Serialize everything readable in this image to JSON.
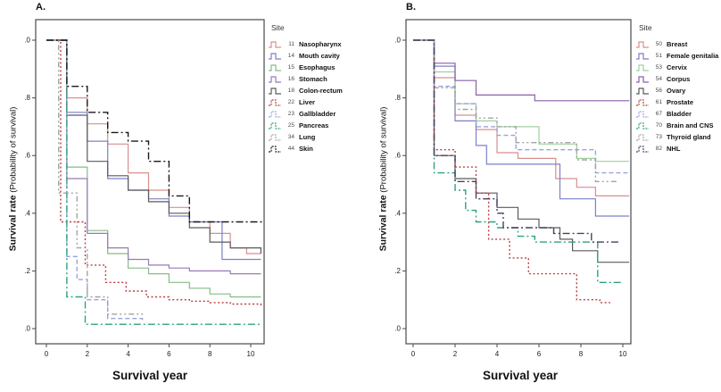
{
  "chart_data": [
    {
      "id": "A",
      "type": "line",
      "subtype": "kaplan-meier-step",
      "panel_label": "A.",
      "legend_title": "Site",
      "x_axis": {
        "title": "Survival year",
        "ticks": [
          0,
          2,
          4,
          6,
          8,
          10
        ],
        "range": [
          0,
          10.8
        ]
      },
      "y_axis": {
        "title_bold": "Survival rate",
        "title_rest": " (Probability of survival)",
        "ticks": [
          0.0,
          0.2,
          0.4,
          0.6,
          0.8,
          1.0
        ],
        "range": [
          0,
          1
        ]
      },
      "series": [
        {
          "code": "11",
          "label": "Nasopharynx",
          "color": "#d88f8f",
          "dash": "solid",
          "points": [
            [
              1,
              0.8
            ],
            [
              2,
              0.71
            ],
            [
              3,
              0.64
            ],
            [
              4,
              0.54
            ],
            [
              5,
              0.48
            ],
            [
              6,
              0.42
            ],
            [
              7,
              0.37
            ],
            [
              8,
              0.33
            ],
            [
              9,
              0.28
            ],
            [
              9.8,
              0.26
            ],
            [
              10.5,
              0.26
            ]
          ]
        },
        {
          "code": "14",
          "label": "Mouth cavity",
          "color": "#7b80c8",
          "dash": "solid",
          "points": [
            [
              1,
              0.75
            ],
            [
              2,
              0.65
            ],
            [
              3,
              0.52
            ],
            [
              4,
              0.48
            ],
            [
              5,
              0.45
            ],
            [
              6,
              0.39
            ],
            [
              7,
              0.37
            ],
            [
              8.6,
              0.24
            ],
            [
              10.5,
              0.24
            ]
          ]
        },
        {
          "code": "15",
          "label": "Esophagus",
          "color": "#86bb86",
          "dash": "solid",
          "points": [
            [
              1,
              0.56
            ],
            [
              2,
              0.34
            ],
            [
              3,
              0.26
            ],
            [
              4,
              0.21
            ],
            [
              5,
              0.19
            ],
            [
              6,
              0.16
            ],
            [
              7,
              0.14
            ],
            [
              8,
              0.12
            ],
            [
              9,
              0.11
            ],
            [
              10.5,
              0.11
            ]
          ]
        },
        {
          "code": "16",
          "label": "Stomach",
          "color": "#9a79b8",
          "dash": "solid",
          "points": [
            [
              1,
              0.52
            ],
            [
              2,
              0.33
            ],
            [
              3,
              0.28
            ],
            [
              4,
              0.24
            ],
            [
              5,
              0.22
            ],
            [
              6,
              0.21
            ],
            [
              7,
              0.2
            ],
            [
              9,
              0.19
            ],
            [
              10.5,
              0.19
            ]
          ]
        },
        {
          "code": "18",
          "label": "Colon-rectum",
          "color": "#5a5a5a",
          "dash": "solid",
          "points": [
            [
              1,
              0.74
            ],
            [
              2,
              0.58
            ],
            [
              3,
              0.53
            ],
            [
              4,
              0.48
            ],
            [
              5,
              0.44
            ],
            [
              6,
              0.4
            ],
            [
              7,
              0.35
            ],
            [
              8,
              0.3
            ],
            [
              9,
              0.28
            ],
            [
              10.5,
              0.26
            ]
          ]
        },
        {
          "code": "22",
          "label": "Liver",
          "color": "#b84040",
          "dash": "dot",
          "points": [
            [
              0.7,
              0.37
            ],
            [
              1.9,
              0.22
            ],
            [
              2.9,
              0.16
            ],
            [
              3.9,
              0.13
            ],
            [
              4.9,
              0.11
            ],
            [
              6,
              0.1
            ],
            [
              7,
              0.095
            ],
            [
              8,
              0.09
            ],
            [
              9,
              0.085
            ],
            [
              10.5,
              0.08
            ]
          ]
        },
        {
          "code": "23",
          "label": "Gallbladder",
          "color": "#9aa2dc",
          "dash": "dash",
          "points": [
            [
              1,
              0.25
            ],
            [
              1.5,
              0.17
            ],
            [
              2,
              0.1
            ],
            [
              3,
              0.035
            ],
            [
              4.7,
              0.03
            ]
          ]
        },
        {
          "code": "25",
          "label": "Pancreas",
          "color": "#2ea183",
          "dash": "dashdot",
          "points": [
            [
              1,
              0.11
            ],
            [
              1.9,
              0.015
            ],
            [
              10.5,
              0.015
            ]
          ]
        },
        {
          "code": "34",
          "label": "Lung",
          "color": "#a3a3a3",
          "dash": "dashdotdot",
          "points": [
            [
              0.6,
              0.47
            ],
            [
              1.5,
              0.28
            ],
            [
              2,
              0.11
            ],
            [
              3,
              0.05
            ],
            [
              4.7,
              0.04
            ]
          ]
        },
        {
          "code": "44",
          "label": "Skin",
          "color": "#1a1a1a",
          "dash": "dashdot",
          "points": [
            [
              1,
              0.84
            ],
            [
              2,
              0.75
            ],
            [
              3,
              0.68
            ],
            [
              4,
              0.65
            ],
            [
              5,
              0.58
            ],
            [
              6,
              0.46
            ],
            [
              7,
              0.37
            ],
            [
              10.6,
              0.37
            ]
          ]
        }
      ]
    },
    {
      "id": "B",
      "type": "line",
      "subtype": "kaplan-meier-step",
      "panel_label": "B.",
      "legend_title": "Site",
      "x_axis": {
        "title": "Survival year",
        "ticks": [
          0,
          2,
          4,
          6,
          8,
          10
        ],
        "range": [
          0,
          10.5
        ]
      },
      "y_axis": {
        "title_bold": "Survival rate",
        "title_rest": " (Probability of survival)",
        "ticks": [
          0.0,
          0.2,
          0.4,
          0.6,
          0.8,
          1.0
        ],
        "range": [
          0,
          1
        ]
      },
      "series": [
        {
          "code": "50",
          "label": "Breast",
          "color": "#d88f8f",
          "dash": "solid",
          "points": [
            [
              1,
              0.87
            ],
            [
              2,
              0.74
            ],
            [
              3,
              0.69
            ],
            [
              4,
              0.61
            ],
            [
              5,
              0.59
            ],
            [
              6.8,
              0.52
            ],
            [
              7.8,
              0.49
            ],
            [
              8.7,
              0.46
            ],
            [
              10.3,
              0.46
            ]
          ]
        },
        {
          "code": "51",
          "label": "Female genitalia",
          "color": "#7b80c8",
          "dash": "solid",
          "points": [
            [
              1,
              0.91
            ],
            [
              2,
              0.72
            ],
            [
              3,
              0.635
            ],
            [
              3.5,
              0.57
            ],
            [
              7,
              0.45
            ],
            [
              8.7,
              0.39
            ],
            [
              10.3,
              0.39
            ]
          ]
        },
        {
          "code": "53",
          "label": "Cervix",
          "color": "#9fd09f",
          "dash": "solid",
          "points": [
            [
              1,
              0.89
            ],
            [
              2,
              0.78
            ],
            [
              3,
              0.72
            ],
            [
              4,
              0.7
            ],
            [
              6,
              0.64
            ],
            [
              7.8,
              0.59
            ],
            [
              8.7,
              0.58
            ],
            [
              10.3,
              0.58
            ]
          ]
        },
        {
          "code": "54",
          "label": "Corpus",
          "color": "#8a5fa8",
          "dash": "solid",
          "points": [
            [
              1,
              0.92
            ],
            [
              2,
              0.86
            ],
            [
              3,
              0.81
            ],
            [
              5.8,
              0.79
            ],
            [
              10.3,
              0.79
            ]
          ]
        },
        {
          "code": "56",
          "label": "Ovary",
          "color": "#5a5a5a",
          "dash": "solid",
          "points": [
            [
              1,
              0.6
            ],
            [
              2,
              0.52
            ],
            [
              3,
              0.47
            ],
            [
              4,
              0.42
            ],
            [
              5,
              0.38
            ],
            [
              6,
              0.35
            ],
            [
              7,
              0.31
            ],
            [
              7.6,
              0.27
            ],
            [
              8.8,
              0.23
            ],
            [
              10.3,
              0.23
            ]
          ]
        },
        {
          "code": "61",
          "label": "Prostate",
          "color": "#b84040",
          "dash": "dot",
          "points": [
            [
              1,
              0.62
            ],
            [
              2,
              0.56
            ],
            [
              3,
              0.47
            ],
            [
              3.6,
              0.31
            ],
            [
              4.6,
              0.245
            ],
            [
              5.5,
              0.19
            ],
            [
              7.8,
              0.1
            ],
            [
              8.9,
              0.09
            ],
            [
              9.4,
              0.09
            ]
          ]
        },
        {
          "code": "67",
          "label": "Bladder",
          "color": "#9aa2dc",
          "dash": "dash",
          "points": [
            [
              1,
              0.84
            ],
            [
              2,
              0.78
            ],
            [
              3,
              0.7
            ],
            [
              4,
              0.67
            ],
            [
              4.9,
              0.62
            ],
            [
              8.7,
              0.54
            ],
            [
              10.3,
              0.54
            ]
          ]
        },
        {
          "code": "70",
          "label": "Brain and CNS",
          "color": "#2ea183",
          "dash": "dashdot",
          "points": [
            [
              1,
              0.54
            ],
            [
              2,
              0.48
            ],
            [
              2.5,
              0.41
            ],
            [
              3,
              0.37
            ],
            [
              4,
              0.35
            ],
            [
              5,
              0.32
            ],
            [
              5.8,
              0.3
            ],
            [
              8.8,
              0.16
            ],
            [
              9.9,
              0.16
            ]
          ]
        },
        {
          "code": "73",
          "label": "Thyroid gland",
          "color": "#a3a3a3",
          "dash": "dashdotdot",
          "points": [
            [
              1,
              0.835
            ],
            [
              2,
              0.76
            ],
            [
              3,
              0.73
            ],
            [
              4,
              0.7
            ],
            [
              4.9,
              0.645
            ],
            [
              7.8,
              0.585
            ],
            [
              8.7,
              0.51
            ],
            [
              9.8,
              0.51
            ]
          ]
        },
        {
          "code": "82",
          "label": "NHL",
          "color": "#4a3f63",
          "dash": "dashdot",
          "points": [
            [
              1,
              0.6
            ],
            [
              2,
              0.51
            ],
            [
              3,
              0.45
            ],
            [
              4,
              0.4
            ],
            [
              4.3,
              0.35
            ],
            [
              6.7,
              0.33
            ],
            [
              8.5,
              0.3
            ],
            [
              9.8,
              0.3
            ]
          ]
        }
      ]
    }
  ]
}
